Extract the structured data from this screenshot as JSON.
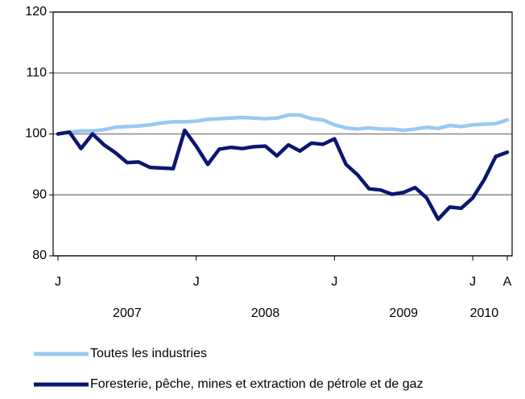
{
  "chart_data": {
    "type": "line",
    "categories": [
      "J",
      null,
      null,
      null,
      null,
      null,
      null,
      null,
      null,
      null,
      null,
      null,
      "J",
      null,
      null,
      null,
      null,
      null,
      null,
      null,
      null,
      null,
      null,
      null,
      "J",
      null,
      null,
      null,
      null,
      null,
      null,
      null,
      null,
      null,
      null,
      null,
      "J",
      null,
      null,
      "A"
    ],
    "year_labels": [
      null,
      null,
      null,
      null,
      null,
      null,
      "2007",
      null,
      null,
      null,
      null,
      null,
      null,
      null,
      null,
      null,
      null,
      null,
      "2008",
      null,
      null,
      null,
      null,
      null,
      null,
      null,
      null,
      null,
      null,
      null,
      "2009",
      null,
      null,
      null,
      null,
      null,
      null,
      "2010",
      null,
      null
    ],
    "series": [
      {
        "name": "Toutes les industries",
        "color": "#99c9f2",
        "values": [
          100,
          100.3,
          100.5,
          100.5,
          100.7,
          101.1,
          101.2,
          101.3,
          101.5,
          101.8,
          102,
          102,
          102.1,
          102.4,
          102.5,
          102.6,
          102.7,
          102.6,
          102.5,
          102.6,
          103.1,
          103.1,
          102.5,
          102.3,
          101.5,
          101,
          100.8,
          101,
          100.8,
          100.8,
          100.6,
          100.8,
          101.1,
          100.9,
          101.4,
          101.2,
          101.5,
          101.6,
          101.7,
          102.3
        ]
      },
      {
        "name": "Foresterie, pêche, mines et extraction de pétrole et de gaz",
        "color": "#0b1670",
        "values": [
          100,
          100.3,
          97.6,
          100,
          98.2,
          96.9,
          95.3,
          95.4,
          94.5,
          94.4,
          94.3,
          100.6,
          98,
          95,
          97.5,
          97.8,
          97.6,
          97.9,
          98,
          96.4,
          98.2,
          97.2,
          98.5,
          98.3,
          99.2,
          95,
          93.3,
          91,
          90.8,
          90.1,
          90.4,
          91.2,
          89.5,
          86,
          88,
          87.8,
          89.5,
          92.5,
          96.3,
          97
        ]
      }
    ],
    "ylim": [
      80,
      120
    ],
    "yticks": [
      80,
      90,
      100,
      110,
      120
    ],
    "grid": true
  }
}
